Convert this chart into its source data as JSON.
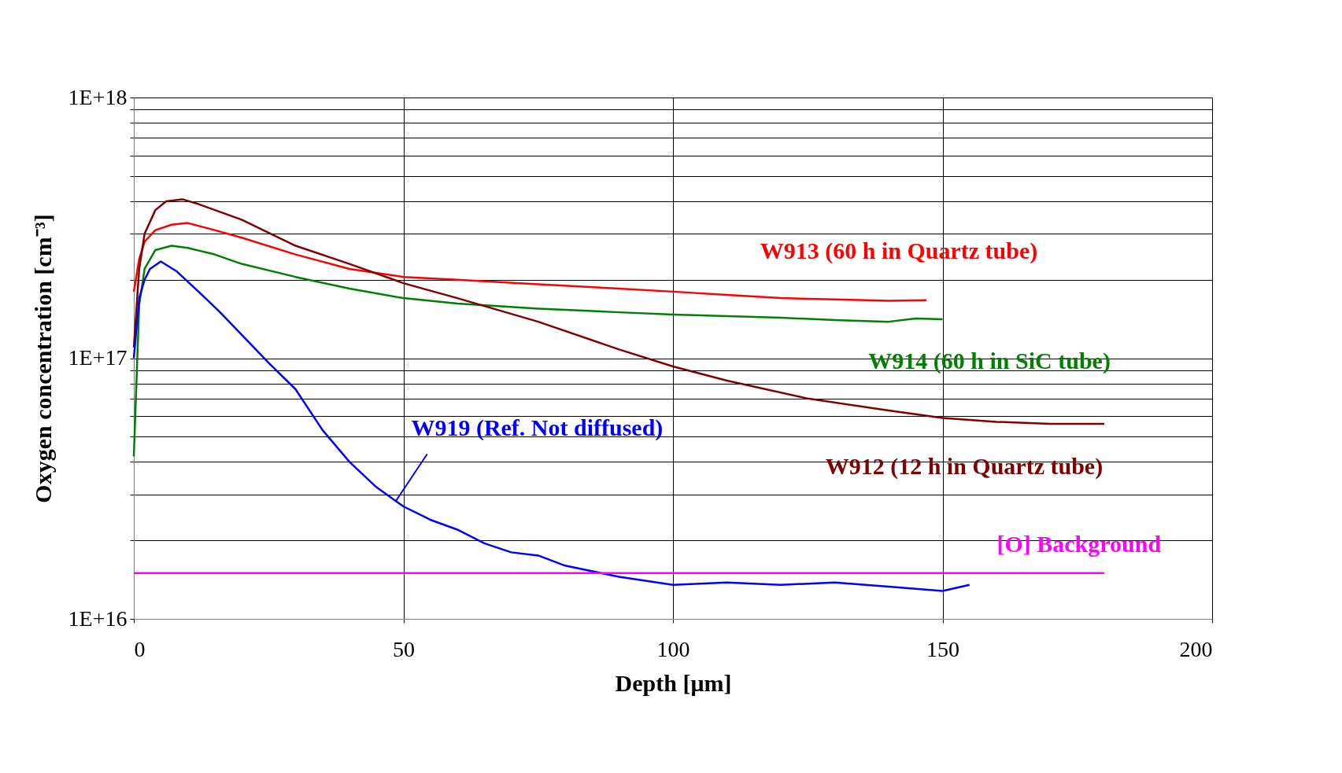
{
  "chart_data": {
    "type": "line",
    "xlabel": "Depth [μm]",
    "ylabel": "Oxygen concentration [cm⁻³]",
    "log": "y",
    "grid": true,
    "legend": false,
    "line_style": "solid",
    "marker": "none",
    "xlim": [
      0,
      200
    ],
    "xticks": [
      0,
      50,
      100,
      150,
      200
    ],
    "ylim": [
      1e+16,
      1e+18
    ],
    "yticks": [
      {
        "value": 1e+16,
        "label": "1E+16"
      },
      {
        "value": 2e+16,
        "label": null
      },
      {
        "value": 3e+16,
        "label": null
      },
      {
        "value": 4e+16,
        "label": null
      },
      {
        "value": 5e+16,
        "label": null
      },
      {
        "value": 6e+16,
        "label": null
      },
      {
        "value": 7e+16,
        "label": null
      },
      {
        "value": 8e+16,
        "label": null
      },
      {
        "value": 9e+16,
        "label": null
      },
      {
        "value": 1e+17,
        "label": "1E+17"
      },
      {
        "value": 2e+17,
        "label": null
      },
      {
        "value": 3e+17,
        "label": null
      },
      {
        "value": 4e+17,
        "label": null
      },
      {
        "value": 5e+17,
        "label": null
      },
      {
        "value": 6e+17,
        "label": null
      },
      {
        "value": 7e+17,
        "label": null
      },
      {
        "value": 8e+17,
        "label": null
      },
      {
        "value": 9e+17,
        "label": null
      },
      {
        "value": 1e+18,
        "label": "1E+18"
      }
    ],
    "series": [
      {
        "name": "W913 (60 h in Quartz tube)",
        "color": "#ff0000",
        "x": [
          0,
          1,
          2,
          4,
          7,
          10,
          15,
          20,
          30,
          40,
          50,
          60,
          75,
          90,
          100,
          110,
          120,
          130,
          140,
          147
        ],
        "values": [
          1.8e+17,
          2.4e+17,
          2.8e+17,
          3.1e+17,
          3.25e+17,
          3.3e+17,
          3.1e+17,
          2.9e+17,
          2.5e+17,
          2.2e+17,
          2.05e+17,
          2e+17,
          1.92e+17,
          1.85e+17,
          1.8e+17,
          1.75e+17,
          1.7e+17,
          1.68e+17,
          1.66e+17,
          1.67e+17
        ]
      },
      {
        "name": "W914 (60 h in SiC tube)",
        "color": "#008000",
        "x": [
          0,
          1,
          2,
          4,
          7,
          10,
          15,
          20,
          30,
          40,
          50,
          60,
          75,
          90,
          100,
          110,
          120,
          130,
          140,
          145,
          150
        ],
        "values": [
          4.2e+16,
          1.6e+17,
          2.2e+17,
          2.6e+17,
          2.7e+17,
          2.65e+17,
          2.5e+17,
          2.3e+17,
          2.05e+17,
          1.85e+17,
          1.7e+17,
          1.62e+17,
          1.55e+17,
          1.5e+17,
          1.47e+17,
          1.45e+17,
          1.43e+17,
          1.4e+17,
          1.38e+17,
          1.42e+17,
          1.41e+17
        ]
      },
      {
        "name": "W912 (12 h in Quartz tube)",
        "color": "#800000",
        "x": [
          0,
          1,
          2,
          4,
          6,
          9,
          12,
          20,
          30,
          40,
          50,
          60,
          75,
          90,
          100,
          110,
          125,
          140,
          150,
          160,
          170,
          180
        ],
        "values": [
          1.1e+17,
          2.2e+17,
          3e+17,
          3.7e+17,
          4e+17,
          4.07e+17,
          3.9e+17,
          3.4e+17,
          2.7e+17,
          2.3e+17,
          1.94e+17,
          1.7e+17,
          1.38e+17,
          1.08e+17,
          9.3e+16,
          8.2e+16,
          7e+16,
          6.3e+16,
          5.9e+16,
          5.7e+16,
          5.6e+16,
          5.6e+16
        ]
      },
      {
        "name": "W919 (Ref. Not diffused)",
        "color": "#0000ff",
        "x": [
          0,
          1,
          2,
          3,
          5,
          8,
          12,
          16,
          20,
          25,
          30,
          35,
          40,
          45,
          50,
          55,
          60,
          65,
          70,
          75,
          80,
          90,
          100,
          110,
          120,
          130,
          140,
          150,
          155
        ],
        "values": [
          1e+17,
          1.7e+17,
          2e+17,
          2.2e+17,
          2.35e+17,
          2.15e+17,
          1.8e+17,
          1.5e+17,
          1.23e+17,
          9.6e+16,
          7.6e+16,
          5.3e+16,
          4e+16,
          3.2e+16,
          2.7e+16,
          2.4e+16,
          2.2e+16,
          1.95e+16,
          1.8e+16,
          1.75e+16,
          1.6e+16,
          1.45e+16,
          1.35e+16,
          1.38e+16,
          1.35e+16,
          1.38e+16,
          1.33e+16,
          1.28e+16,
          1.35e+16
        ]
      },
      {
        "name": "[O] Background",
        "color": "#ff00ff",
        "x": [
          0,
          180
        ],
        "values": [
          1.5e+16,
          1.5e+16
        ]
      }
    ]
  }
}
